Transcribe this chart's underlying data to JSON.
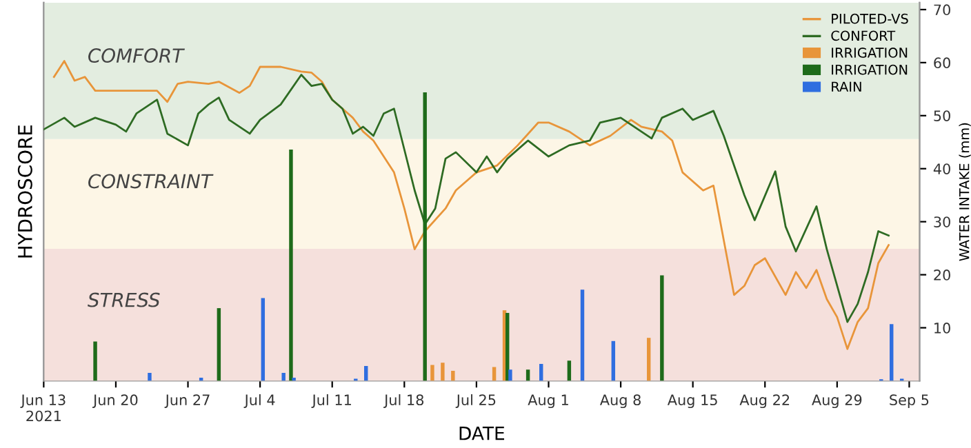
{
  "chart_data": {
    "type": "line",
    "xlabel": "DATE",
    "ylabel": "HYDROSCORE",
    "y2label": "WATER INTAKE (mm)",
    "xlim": [
      "2021-06-13",
      "2021-09-06"
    ],
    "xticks": [
      {
        "value": "2021-06-13",
        "label": "Jun 13\n2021"
      },
      {
        "value": "2021-06-20",
        "label": "Jun 20"
      },
      {
        "value": "2021-06-27",
        "label": "Jun 27"
      },
      {
        "value": "2021-07-04",
        "label": "Jul 4"
      },
      {
        "value": "2021-07-11",
        "label": "Jul 11"
      },
      {
        "value": "2021-07-18",
        "label": "Jul 18"
      },
      {
        "value": "2021-07-25",
        "label": "Jul 25"
      },
      {
        "value": "2021-08-01",
        "label": "Aug 1"
      },
      {
        "value": "2021-08-08",
        "label": "Aug 8"
      },
      {
        "value": "2021-08-15",
        "label": "Aug 15"
      },
      {
        "value": "2021-08-22",
        "label": "Aug 22"
      },
      {
        "value": "2021-08-29",
        "label": "Aug 29"
      },
      {
        "value": "2021-09-05",
        "label": "Sep 5"
      }
    ],
    "y2lim": [
      0,
      71.3
    ],
    "y2ticks": [
      10,
      20,
      30,
      40,
      50,
      60,
      70
    ],
    "grid": false,
    "legend": "top right",
    "bands": [
      {
        "axis": "y2",
        "from": 0,
        "to": 24.9,
        "label": "STRESS",
        "color": "#f5e0dc"
      },
      {
        "axis": "y2",
        "from": 24.9,
        "to": 45.6,
        "label": "CONSTRAINT",
        "color": "#fdf6e6"
      },
      {
        "axis": "y2",
        "from": 45.6,
        "to": 71.3,
        "label": "COMFORT",
        "color": "#e3ede0"
      }
    ],
    "series": [
      {
        "name": "PILOTED-VS",
        "axis": "y2",
        "color": "#e8953a",
        "x": [
          "2021-06-14",
          "2021-06-15",
          "2021-06-16",
          "2021-06-17",
          "2021-06-18",
          "2021-06-24",
          "2021-06-25",
          "2021-06-26",
          "2021-06-27",
          "2021-06-29",
          "2021-06-30",
          "2021-07-02",
          "2021-07-03",
          "2021-07-04",
          "2021-07-06",
          "2021-07-08",
          "2021-07-09",
          "2021-07-10",
          "2021-07-11",
          "2021-07-13",
          "2021-07-14",
          "2021-07-15",
          "2021-07-17",
          "2021-07-18",
          "2021-07-19",
          "2021-07-20",
          "2021-07-22",
          "2021-07-23",
          "2021-07-25",
          "2021-07-27",
          "2021-07-29",
          "2021-07-31",
          "2021-08-01",
          "2021-08-03",
          "2021-08-05",
          "2021-08-07",
          "2021-08-09",
          "2021-08-10",
          "2021-08-12",
          "2021-08-13",
          "2021-08-14",
          "2021-08-16",
          "2021-08-17",
          "2021-08-18",
          "2021-08-19",
          "2021-08-20",
          "2021-08-21",
          "2021-08-22",
          "2021-08-24",
          "2021-08-25",
          "2021-08-26",
          "2021-08-27",
          "2021-08-28",
          "2021-08-29",
          "2021-08-30",
          "2021-08-31",
          "2021-09-01",
          "2021-09-02",
          "2021-09-03"
        ],
        "values": [
          57.3,
          60.3,
          56.6,
          57.3,
          54.7,
          54.7,
          52.6,
          56.0,
          56.4,
          56.0,
          56.4,
          54.3,
          55.6,
          59.2,
          59.2,
          58.3,
          58.1,
          56.4,
          53.0,
          49.6,
          47.0,
          45.3,
          39.3,
          32.5,
          24.8,
          28.2,
          32.5,
          35.9,
          39.3,
          40.6,
          44.4,
          48.7,
          48.7,
          47.0,
          44.4,
          46.2,
          49.2,
          47.9,
          47.0,
          45.3,
          39.3,
          35.9,
          36.8,
          26.5,
          16.2,
          17.9,
          21.8,
          23.1,
          16.2,
          20.5,
          17.5,
          20.9,
          15.4,
          12.0,
          6.0,
          11.1,
          13.7,
          22.2,
          25.6
        ]
      },
      {
        "name": "CONFORT",
        "axis": "y2",
        "color": "#2e6b23",
        "x": [
          "2021-06-13",
          "2021-06-15",
          "2021-06-16",
          "2021-06-18",
          "2021-06-20",
          "2021-06-21",
          "2021-06-22",
          "2021-06-24",
          "2021-06-25",
          "2021-06-27",
          "2021-06-28",
          "2021-06-29",
          "2021-06-30",
          "2021-07-01",
          "2021-07-03",
          "2021-07-04",
          "2021-07-06",
          "2021-07-08",
          "2021-07-09",
          "2021-07-10",
          "2021-07-11",
          "2021-07-12",
          "2021-07-13",
          "2021-07-14",
          "2021-07-15",
          "2021-07-16",
          "2021-07-17",
          "2021-07-18",
          "2021-07-19",
          "2021-07-20",
          "2021-07-21",
          "2021-07-22",
          "2021-07-23",
          "2021-07-25",
          "2021-07-26",
          "2021-07-27",
          "2021-07-28",
          "2021-07-30",
          "2021-08-01",
          "2021-08-03",
          "2021-08-05",
          "2021-08-06",
          "2021-08-08",
          "2021-08-09",
          "2021-08-11",
          "2021-08-12",
          "2021-08-14",
          "2021-08-15",
          "2021-08-17",
          "2021-08-18",
          "2021-08-20",
          "2021-08-21",
          "2021-08-23",
          "2021-08-24",
          "2021-08-25",
          "2021-08-27",
          "2021-08-28",
          "2021-08-30",
          "2021-08-31",
          "2021-09-01",
          "2021-09-02",
          "2021-09-03"
        ],
        "values": [
          47.4,
          49.6,
          47.9,
          49.6,
          48.3,
          47.0,
          50.4,
          53.0,
          46.6,
          44.4,
          50.4,
          52.1,
          53.4,
          49.2,
          46.6,
          49.2,
          52.1,
          57.7,
          55.6,
          56.0,
          53.0,
          51.3,
          46.6,
          47.9,
          46.2,
          50.4,
          51.3,
          43.6,
          35.9,
          29.5,
          32.5,
          41.9,
          43.1,
          39.3,
          42.3,
          39.3,
          41.9,
          45.3,
          42.3,
          44.4,
          45.3,
          48.7,
          49.6,
          48.3,
          45.7,
          49.6,
          51.3,
          49.2,
          50.9,
          46.2,
          35.0,
          30.3,
          39.5,
          29.1,
          24.4,
          32.9,
          24.8,
          11.1,
          14.5,
          20.5,
          28.2,
          27.4
        ]
      },
      {
        "name": "IRRIGATION",
        "type": "bar",
        "axis": "y2",
        "color": "#e8953a",
        "x": [
          "2021-07-21",
          "2021-07-22",
          "2021-07-23",
          "2021-07-27",
          "2021-07-28",
          "2021-08-11"
        ],
        "values": [
          3.0,
          3.4,
          1.9,
          2.6,
          13.3,
          8.1
        ]
      },
      {
        "name": "IRRIGATION",
        "type": "bar",
        "axis": "y2",
        "color": "#1e6b1a",
        "x": [
          "2021-06-18",
          "2021-06-30",
          "2021-07-07",
          "2021-07-20",
          "2021-07-28",
          "2021-07-30",
          "2021-08-03",
          "2021-08-12"
        ],
        "values": [
          7.4,
          13.7,
          43.6,
          54.4,
          12.8,
          2.1,
          3.8,
          19.9
        ]
      },
      {
        "name": "RAIN",
        "type": "bar",
        "axis": "y2",
        "color": "#2f6ee0",
        "x": [
          "2021-06-23",
          "2021-06-28",
          "2021-07-04",
          "2021-07-06",
          "2021-07-07",
          "2021-07-13",
          "2021-07-14",
          "2021-07-28",
          "2021-07-31",
          "2021-08-04",
          "2021-08-07",
          "2021-09-02",
          "2021-09-03",
          "2021-09-04"
        ],
        "values": [
          1.5,
          0.6,
          15.6,
          1.5,
          0.6,
          0.4,
          2.8,
          2.1,
          3.2,
          17.2,
          7.5,
          0.3,
          10.7,
          0.4
        ]
      }
    ]
  }
}
